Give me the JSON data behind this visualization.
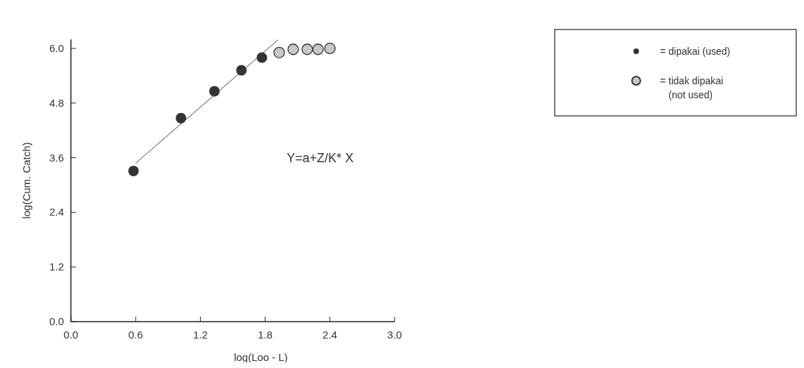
{
  "chart_data": {
    "type": "scatter",
    "xlabel": "log(Loo - L)",
    "ylabel": "log(Cum. Catch)",
    "xlim": [
      0,
      3
    ],
    "ylim": [
      0,
      6.2
    ],
    "xticks": [
      {
        "value": 0,
        "label": "0.0"
      },
      0.6,
      1.2,
      1.8,
      2.4,
      {
        "value": 3,
        "label": "3.0"
      }
    ],
    "yticks": [
      {
        "value": 0,
        "label": "0.0"
      },
      1.2,
      2.4,
      3.6,
      4.8,
      {
        "value": 6,
        "label": "6.0"
      }
    ],
    "grid": false,
    "legend": "top right",
    "annotations": [
      "Y=a+Z/K* X"
    ],
    "series": [
      {
        "name": "= dipakai (used)",
        "color": "#333333",
        "marker": "circle",
        "x": [
          0.58,
          1.02,
          1.33,
          1.58,
          1.77
        ],
        "values": [
          3.31,
          4.47,
          5.06,
          5.52,
          5.8
        ]
      },
      {
        "name": "= tidak dipakai (not used)",
        "color": "#c8c8c8",
        "marker": "circle",
        "x": [
          1.93,
          2.06,
          2.19,
          2.29,
          2.4
        ],
        "values": [
          5.91,
          5.98,
          5.98,
          5.98,
          6.0
        ]
      },
      {
        "type": "line",
        "color": "#444444",
        "marker": "none",
        "x": [
          0.6,
          1.92
        ],
        "values": [
          3.48,
          6.19
        ]
      }
    ]
  }
}
